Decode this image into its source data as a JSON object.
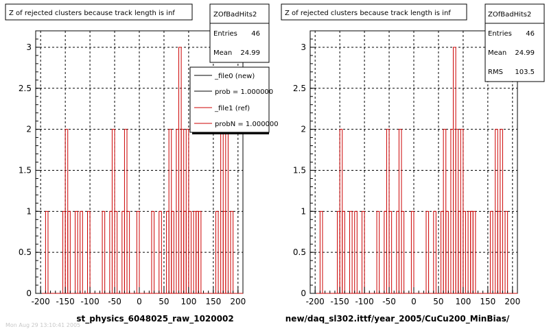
{
  "panels": [
    {
      "title": "Z of rejected clusters  because track length is inf",
      "stats": {
        "name": "ZOfBadHits2",
        "rows": [
          {
            "label": "Entries",
            "value": "46"
          },
          {
            "label": "Mean",
            "value": "24.99"
          }
        ]
      },
      "xlabel": "st_physics_6048025_raw_1020002",
      "legend": [
        {
          "label": "_file0 (new)",
          "color": "#000000"
        },
        {
          "label": "prob = 1.000000",
          "color": "#000000"
        },
        {
          "label": "_file1 (ref)",
          "color": "#cc0000"
        },
        {
          "label": "probN = 1.000000",
          "color": "#cc0000"
        }
      ]
    },
    {
      "title": "Z of rejected clusters  because track length is inf",
      "stats": {
        "name": "ZOfBadHits2",
        "rows": [
          {
            "label": "Entries",
            "value": "46"
          },
          {
            "label": "Mean",
            "value": "24.99"
          },
          {
            "label": "RMS",
            "value": "103.5"
          }
        ]
      },
      "xlabel": "new/daq_sl302.ittf/year_2005/CuCu200_MinBias/"
    }
  ],
  "footer_text": "Mon Aug 29 13:10:41 2005",
  "colors": {
    "histogram": "#cc0000",
    "grid": "#000000",
    "frame": "#000000"
  },
  "chart_data": [
    {
      "type": "bar",
      "style": "step-histogram",
      "title": "Z of rejected clusters  because track length is inf",
      "xlabel": "st_physics_6048025_raw_1020002",
      "ylabel": "",
      "xlim": [
        -210,
        210
      ],
      "ylim": [
        0,
        3.2
      ],
      "xticks": [
        "-200",
        "-150",
        "-100",
        "-50",
        "0",
        "50",
        "100",
        "150",
        "200"
      ],
      "yticks": [
        "0",
        "0.5",
        "1",
        "1.5",
        "2",
        "2.5",
        "3"
      ],
      "grid": true,
      "legend_position": "top-right",
      "bins": [
        {
          "x": [
            -190,
            -185
          ],
          "y": 1
        },
        {
          "x": [
            -155,
            -150
          ],
          "y": 1
        },
        {
          "x": [
            -150,
            -145
          ],
          "y": 2
        },
        {
          "x": [
            -145,
            -140
          ],
          "y": 1
        },
        {
          "x": [
            -130,
            -125
          ],
          "y": 1
        },
        {
          "x": [
            -120,
            -115
          ],
          "y": 1
        },
        {
          "x": [
            -105,
            -100
          ],
          "y": 1
        },
        {
          "x": [
            -75,
            -70
          ],
          "y": 1
        },
        {
          "x": [
            -60,
            -55
          ],
          "y": 1
        },
        {
          "x": [
            -55,
            -50
          ],
          "y": 2
        },
        {
          "x": [
            -50,
            -45
          ],
          "y": 1
        },
        {
          "x": [
            -35,
            -30
          ],
          "y": 1
        },
        {
          "x": [
            -30,
            -25
          ],
          "y": 2
        },
        {
          "x": [
            -25,
            -20
          ],
          "y": 1
        },
        {
          "x": [
            -5,
            0
          ],
          "y": 1
        },
        {
          "x": [
            25,
            30
          ],
          "y": 1
        },
        {
          "x": [
            40,
            45
          ],
          "y": 1
        },
        {
          "x": [
            55,
            60
          ],
          "y": 1
        },
        {
          "x": [
            60,
            65
          ],
          "y": 2
        },
        {
          "x": [
            65,
            70
          ],
          "y": 1
        },
        {
          "x": [
            75,
            80
          ],
          "y": 2
        },
        {
          "x": [
            80,
            85
          ],
          "y": 3
        },
        {
          "x": [
            85,
            90
          ],
          "y": 2
        },
        {
          "x": [
            90,
            95
          ],
          "y": 1
        },
        {
          "x": [
            95,
            100
          ],
          "y": 2
        },
        {
          "x": [
            100,
            105
          ],
          "y": 1
        },
        {
          "x": [
            110,
            115
          ],
          "y": 1
        },
        {
          "x": [
            115,
            120
          ],
          "y": 1
        },
        {
          "x": [
            120,
            125
          ],
          "y": 1
        },
        {
          "x": [
            155,
            160
          ],
          "y": 1
        },
        {
          "x": [
            165,
            170
          ],
          "y": 2
        },
        {
          "x": [
            170,
            175
          ],
          "y": 1
        },
        {
          "x": [
            175,
            180
          ],
          "y": 2
        },
        {
          "x": [
            185,
            190
          ],
          "y": 1
        }
      ]
    },
    {
      "type": "bar",
      "style": "step-histogram",
      "title": "Z of rejected clusters  because track length is inf",
      "xlabel": "new/daq_sl302.ittf/year_2005/CuCu200_MinBias/",
      "ylabel": "",
      "xlim": [
        -210,
        210
      ],
      "ylim": [
        0,
        3.2
      ],
      "xticks": [
        "-200",
        "-150",
        "-100",
        "-50",
        "0",
        "50",
        "100",
        "150",
        "200"
      ],
      "yticks": [
        "0",
        "0.5",
        "1",
        "1.5",
        "2",
        "2.5",
        "3"
      ],
      "grid": true,
      "bins": [
        {
          "x": [
            -190,
            -185
          ],
          "y": 1
        },
        {
          "x": [
            -155,
            -150
          ],
          "y": 1
        },
        {
          "x": [
            -150,
            -145
          ],
          "y": 2
        },
        {
          "x": [
            -145,
            -140
          ],
          "y": 1
        },
        {
          "x": [
            -130,
            -125
          ],
          "y": 1
        },
        {
          "x": [
            -120,
            -115
          ],
          "y": 1
        },
        {
          "x": [
            -105,
            -100
          ],
          "y": 1
        },
        {
          "x": [
            -75,
            -70
          ],
          "y": 1
        },
        {
          "x": [
            -60,
            -55
          ],
          "y": 1
        },
        {
          "x": [
            -55,
            -50
          ],
          "y": 2
        },
        {
          "x": [
            -50,
            -45
          ],
          "y": 1
        },
        {
          "x": [
            -35,
            -30
          ],
          "y": 1
        },
        {
          "x": [
            -30,
            -25
          ],
          "y": 2
        },
        {
          "x": [
            -25,
            -20
          ],
          "y": 1
        },
        {
          "x": [
            -5,
            0
          ],
          "y": 1
        },
        {
          "x": [
            25,
            30
          ],
          "y": 1
        },
        {
          "x": [
            40,
            45
          ],
          "y": 1
        },
        {
          "x": [
            55,
            60
          ],
          "y": 1
        },
        {
          "x": [
            60,
            65
          ],
          "y": 2
        },
        {
          "x": [
            65,
            70
          ],
          "y": 1
        },
        {
          "x": [
            75,
            80
          ],
          "y": 2
        },
        {
          "x": [
            80,
            85
          ],
          "y": 3
        },
        {
          "x": [
            85,
            90
          ],
          "y": 2
        },
        {
          "x": [
            90,
            95
          ],
          "y": 1
        },
        {
          "x": [
            95,
            100
          ],
          "y": 2
        },
        {
          "x": [
            100,
            105
          ],
          "y": 1
        },
        {
          "x": [
            110,
            115
          ],
          "y": 1
        },
        {
          "x": [
            115,
            120
          ],
          "y": 1
        },
        {
          "x": [
            120,
            125
          ],
          "y": 1
        },
        {
          "x": [
            155,
            160
          ],
          "y": 1
        },
        {
          "x": [
            165,
            170
          ],
          "y": 2
        },
        {
          "x": [
            170,
            175
          ],
          "y": 1
        },
        {
          "x": [
            175,
            180
          ],
          "y": 2
        },
        {
          "x": [
            185,
            190
          ],
          "y": 1
        }
      ]
    }
  ]
}
